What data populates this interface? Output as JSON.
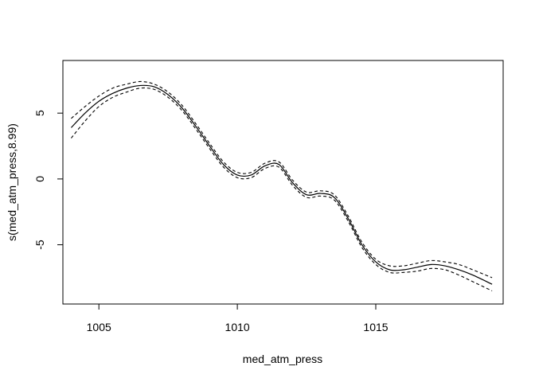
{
  "chart_data": {
    "type": "line",
    "title": "",
    "xlabel": "med_atm_press",
    "ylabel": "s(med_atm_press,8.99)",
    "xlim": [
      1003.7,
      1019.6
    ],
    "ylim": [
      -9.5,
      9.0
    ],
    "xticks": [
      1005,
      1010,
      1015
    ],
    "xtick_labels": [
      "1005",
      "1010",
      "1015"
    ],
    "yticks": [
      -5,
      0,
      5
    ],
    "ytick_labels": [
      "-5",
      "0",
      "5"
    ],
    "grid": false,
    "legend": "none",
    "x": [
      1004.0,
      1004.5,
      1005.0,
      1005.5,
      1006.0,
      1006.5,
      1007.0,
      1007.5,
      1008.0,
      1008.5,
      1009.0,
      1009.5,
      1010.0,
      1010.5,
      1011.0,
      1011.5,
      1012.0,
      1012.5,
      1013.0,
      1013.5,
      1014.0,
      1014.5,
      1015.0,
      1015.5,
      1016.0,
      1016.5,
      1017.0,
      1017.5,
      1018.0,
      1018.5,
      1019.2
    ],
    "series": [
      {
        "style": "solid",
        "values": [
          3.9,
          5.0,
          5.9,
          6.5,
          6.9,
          7.1,
          7.0,
          6.4,
          5.4,
          4.0,
          2.5,
          1.1,
          0.3,
          0.3,
          1.0,
          1.1,
          -0.3,
          -1.2,
          -1.1,
          -1.4,
          -3.0,
          -5.0,
          -6.3,
          -6.9,
          -6.9,
          -6.7,
          -6.5,
          -6.6,
          -6.9,
          -7.3,
          -8.0
        ]
      },
      {
        "style": "dashed",
        "values": [
          4.6,
          5.5,
          6.3,
          6.9,
          7.2,
          7.4,
          7.2,
          6.6,
          5.6,
          4.2,
          2.7,
          1.3,
          0.5,
          0.5,
          1.2,
          1.3,
          -0.1,
          -1.0,
          -0.9,
          -1.2,
          -2.8,
          -4.8,
          -6.1,
          -6.6,
          -6.6,
          -6.4,
          -6.2,
          -6.3,
          -6.5,
          -6.9,
          -7.5
        ]
      },
      {
        "style": "dashed",
        "values": [
          3.1,
          4.4,
          5.5,
          6.2,
          6.6,
          6.9,
          6.8,
          6.2,
          5.2,
          3.8,
          2.3,
          0.9,
          0.1,
          0.1,
          0.8,
          0.9,
          -0.5,
          -1.4,
          -1.3,
          -1.6,
          -3.2,
          -5.2,
          -6.5,
          -7.1,
          -7.1,
          -7.0,
          -6.8,
          -6.9,
          -7.3,
          -7.8,
          -8.5
        ]
      }
    ]
  }
}
